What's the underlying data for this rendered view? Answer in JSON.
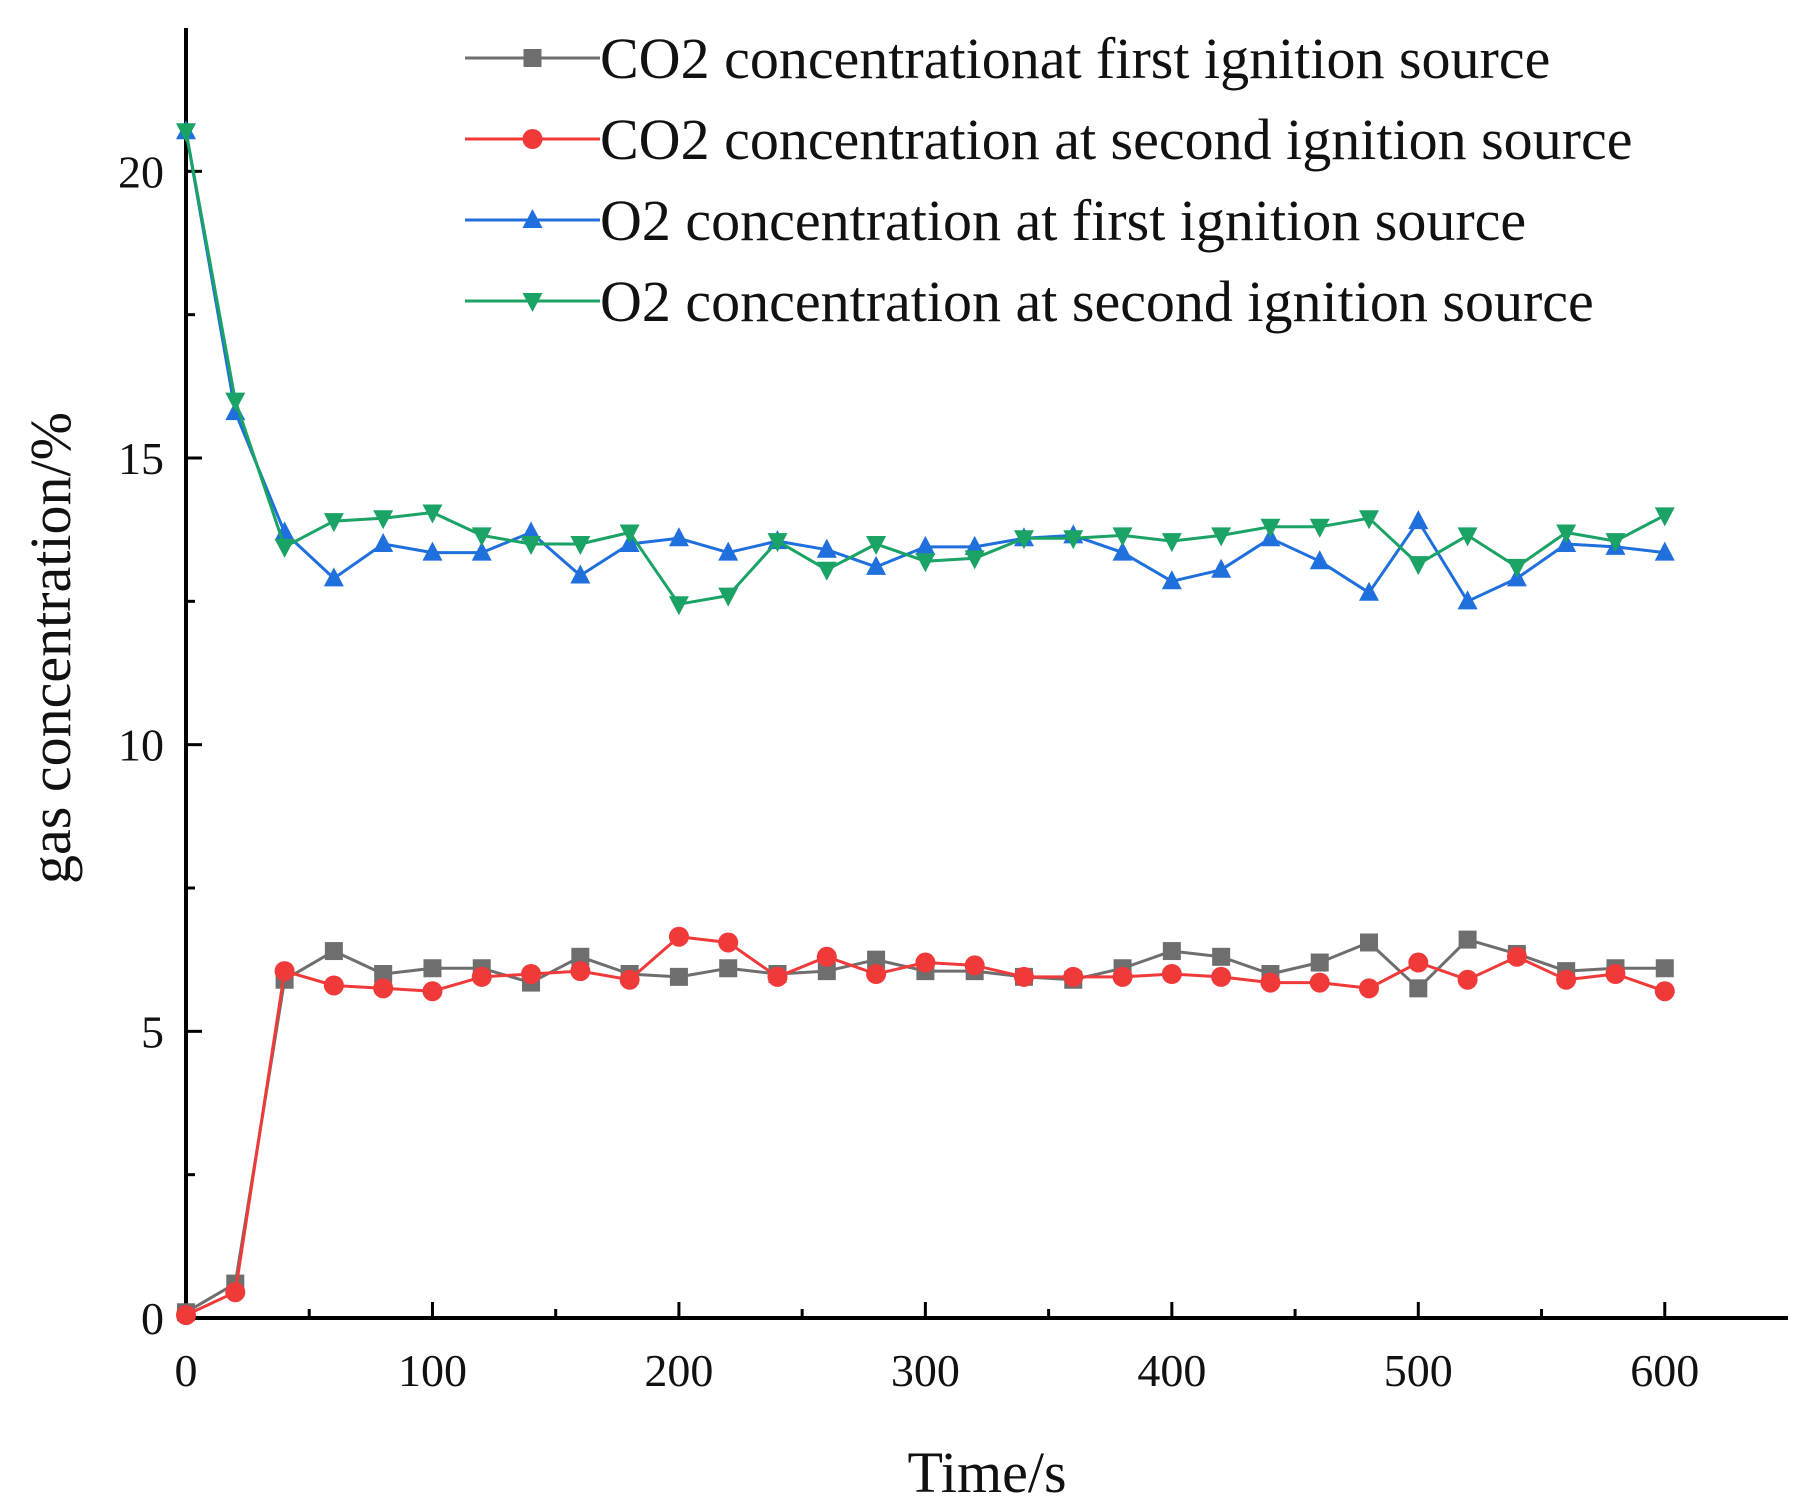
{
  "chart_data": {
    "type": "line",
    "title": "",
    "xlabel": "Time/s",
    "ylabel": "gas concentration/%",
    "xlim": [
      0,
      650
    ],
    "ylim": [
      0,
      22.5
    ],
    "xticks": [
      0,
      100,
      200,
      300,
      400,
      500,
      600
    ],
    "xtick_labels": [
      "0",
      "100",
      "200",
      "300",
      "400",
      "500",
      "600"
    ],
    "yticks": [
      0,
      5,
      10,
      15,
      20
    ],
    "ytick_labels": [
      "0",
      "5",
      "10",
      "15",
      "20"
    ],
    "x": [
      0,
      20,
      40,
      60,
      80,
      100,
      120,
      140,
      160,
      180,
      200,
      220,
      240,
      260,
      280,
      300,
      320,
      340,
      360,
      380,
      400,
      420,
      440,
      460,
      480,
      500,
      520,
      540,
      560,
      580,
      600
    ],
    "series": [
      {
        "name": "CO2 concentrationat first ignition source",
        "color": "#6e6e6e",
        "marker": "square",
        "values": [
          0.1,
          0.6,
          5.9,
          6.4,
          6.0,
          6.1,
          6.1,
          5.85,
          6.3,
          6.0,
          5.95,
          6.1,
          6.0,
          6.05,
          6.25,
          6.05,
          6.05,
          5.95,
          5.9,
          6.1,
          6.4,
          6.3,
          6.0,
          6.2,
          6.55,
          5.75,
          6.6,
          6.35,
          6.05,
          6.1,
          6.1
        ]
      },
      {
        "name": "CO2 concentration at second ignition source",
        "color": "#f03a3a",
        "marker": "circle",
        "values": [
          0.05,
          0.45,
          6.05,
          5.8,
          5.75,
          5.7,
          5.95,
          6.0,
          6.05,
          5.9,
          6.65,
          6.55,
          5.95,
          6.3,
          6.0,
          6.2,
          6.15,
          5.95,
          5.95,
          5.95,
          6.0,
          5.95,
          5.85,
          5.85,
          5.75,
          6.2,
          5.9,
          6.3,
          5.9,
          6.0,
          5.7
        ]
      },
      {
        "name": "O2 concentration at first ignition source",
        "color": "#1f6fdc",
        "marker": "triangle-up",
        "values": [
          20.7,
          15.8,
          13.7,
          12.9,
          13.5,
          13.35,
          13.35,
          13.7,
          12.95,
          13.5,
          13.6,
          13.35,
          13.55,
          13.4,
          13.1,
          13.45,
          13.45,
          13.6,
          13.65,
          13.35,
          12.85,
          13.05,
          13.6,
          13.2,
          12.65,
          13.9,
          12.5,
          12.9,
          13.5,
          13.45,
          13.35
        ]
      },
      {
        "name": "O2 concentration at second ignition source",
        "color": "#1aa364",
        "marker": "triangle-down",
        "values": [
          20.7,
          16.0,
          13.45,
          13.9,
          13.95,
          14.05,
          13.65,
          13.5,
          13.5,
          13.7,
          12.45,
          12.6,
          13.55,
          13.05,
          13.5,
          13.2,
          13.25,
          13.6,
          13.6,
          13.65,
          13.55,
          13.65,
          13.8,
          13.8,
          13.95,
          13.15,
          13.65,
          13.1,
          13.7,
          13.55,
          14.0
        ]
      }
    ],
    "legend": {
      "location": "top-right",
      "entries": [
        "CO2 concentrationat first ignition source",
        "CO2 concentration at second ignition source",
        "O2 concentration at first ignition source",
        "O2 concentration at second ignition source"
      ]
    },
    "grid": false
  }
}
